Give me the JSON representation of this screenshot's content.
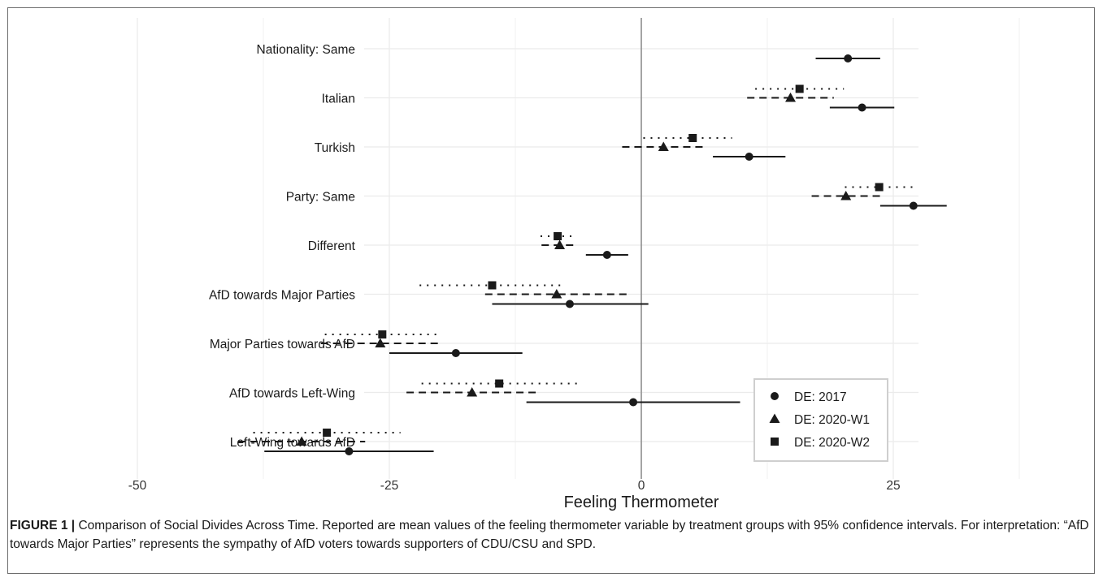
{
  "chart_data": {
    "type": "scatter",
    "subtype": "dot-and-whisker",
    "title": "",
    "xlabel": "Feeling Thermometer",
    "ylabel": "",
    "xlim": [
      -55,
      55
    ],
    "xticks": [
      -50,
      -25,
      0,
      25,
      50
    ],
    "xtick_labels": [
      "-50",
      "-25",
      "0",
      "25",
      "50"
    ],
    "grid": true,
    "vline_at": 0,
    "legend_position": "bottom-right",
    "categories": [
      "Nationality: Same",
      "Italian",
      "Turkish",
      "Party: Same",
      "Different",
      "AfD towards Major Parties",
      "Major Parties towards AfD",
      "AfD towards Left-Wing",
      "Left-Wing towards AfD"
    ],
    "series": [
      {
        "name": "DE: 2017",
        "marker": "circle",
        "line_style": "solid",
        "values": [
          20.5,
          21.9,
          10.7,
          27.0,
          -3.4,
          -7.1,
          -18.4,
          -0.8,
          -29.0
        ],
        "ci_low": [
          17.3,
          18.7,
          7.1,
          23.7,
          -5.5,
          -14.8,
          -25.0,
          -11.4,
          -37.4
        ],
        "ci_high": [
          23.7,
          25.1,
          14.3,
          30.3,
          -1.3,
          0.7,
          -11.8,
          9.8,
          -20.6
        ]
      },
      {
        "name": "DE: 2020-W1",
        "marker": "triangle",
        "line_style": "dashed",
        "values": [
          null,
          14.8,
          2.2,
          20.3,
          -8.1,
          -8.4,
          -25.9,
          -16.8,
          -33.7
        ],
        "ci_low": [
          null,
          10.5,
          -1.9,
          16.9,
          -9.9,
          -15.5,
          -31.8,
          -23.3,
          -40.0
        ],
        "ci_high": [
          null,
          19.1,
          6.3,
          23.7,
          -6.3,
          -1.3,
          -20.0,
          -10.3,
          -27.4
        ]
      },
      {
        "name": "DE: 2020-W2",
        "marker": "square",
        "line_style": "dotted",
        "values": [
          null,
          15.7,
          5.1,
          23.6,
          -8.3,
          -14.8,
          -25.7,
          -14.1,
          -31.2
        ],
        "ci_low": [
          null,
          11.3,
          0.2,
          20.2,
          -10.0,
          -22.0,
          -31.4,
          -21.8,
          -38.5
        ],
        "ci_high": [
          null,
          20.1,
          9.0,
          27.0,
          -6.6,
          -7.6,
          -20.0,
          -6.4,
          -23.9
        ]
      }
    ]
  },
  "caption": {
    "label": "FIGURE 1 |",
    "text": " Comparison of Social Divides Across Time. Reported are mean values of the feeling thermometer variable by treatment groups with 95% confidence intervals. For interpretation: “AfD towards Major Parties” represents the sympathy of AfD voters towards supporters of CDU/CSU and SPD."
  },
  "colors": {
    "marks": "#1a1a1a",
    "grid": "#ebebeb",
    "zero_line": "#9a9a9a",
    "frame": "#6e6e6e"
  }
}
